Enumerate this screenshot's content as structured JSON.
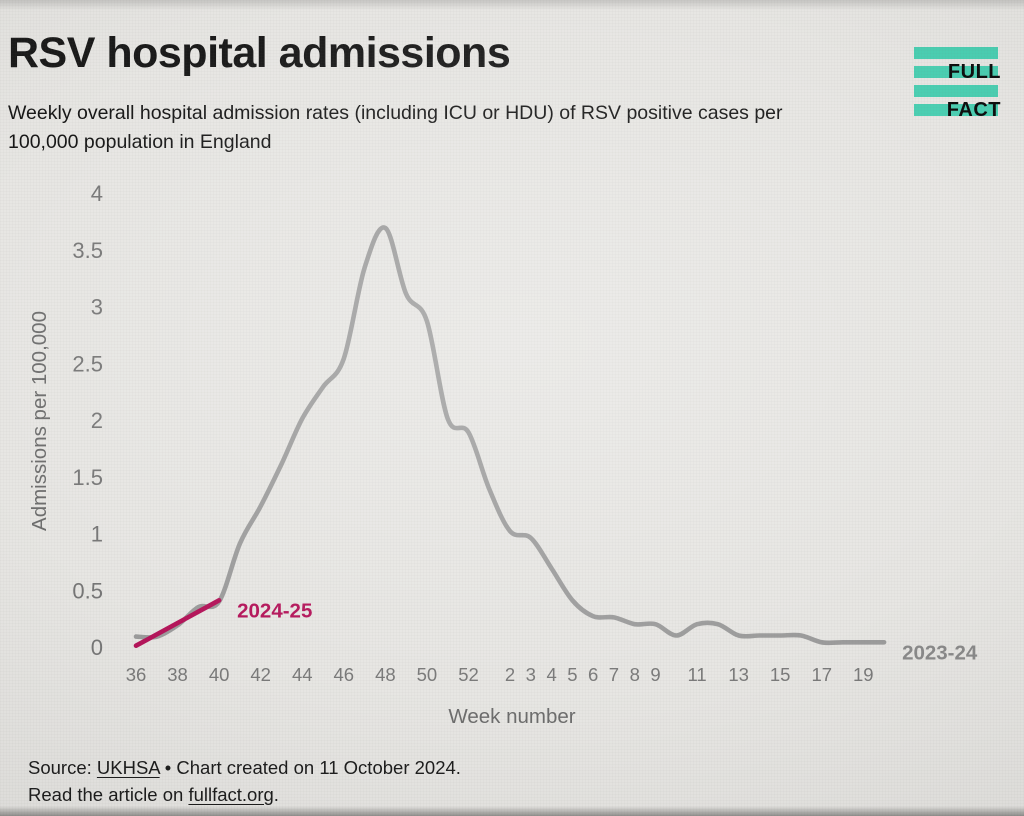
{
  "header": {
    "title": "RSV hospital admissions",
    "subtitle": "Weekly overall hospital admission rates (including ICU or HDU) of RSV positive cases per 100,000 population in England"
  },
  "logo": {
    "word1": "FULL",
    "word2": "FACT",
    "bar_color": "#4BCFB2"
  },
  "chart_data": {
    "type": "line",
    "title": "RSV hospital admissions",
    "xlabel": "Week number",
    "ylabel": "Admissions per 100,000",
    "ylim": [
      0,
      4
    ],
    "grid": false,
    "legend_position": "inline-end-of-line-labels",
    "yticks": [
      0,
      0.5,
      1,
      1.5,
      2,
      2.5,
      3,
      3.5,
      4
    ],
    "ytick_labels": [
      "0",
      "0.5",
      "1",
      "1.5",
      "2",
      "2.5",
      "3",
      "3.5",
      "4"
    ],
    "weeks": [
      36,
      37,
      38,
      39,
      40,
      41,
      42,
      43,
      44,
      45,
      46,
      47,
      48,
      49,
      50,
      51,
      52,
      1,
      2,
      3,
      4,
      5,
      6,
      7,
      8,
      9,
      10,
      11,
      12,
      13,
      14,
      15,
      16,
      17,
      18,
      19,
      20
    ],
    "xticks": [
      36,
      38,
      40,
      42,
      44,
      46,
      48,
      50,
      52,
      2,
      3,
      4,
      5,
      6,
      7,
      8,
      9,
      11,
      13,
      15,
      17,
      19
    ],
    "series": [
      {
        "name": "2023-24",
        "color": "#9C9C9C",
        "label_color": "#8A8A8A",
        "values": [
          0.1,
          0.1,
          0.2,
          0.36,
          0.41,
          0.92,
          1.25,
          1.62,
          2.02,
          2.3,
          2.55,
          3.35,
          3.7,
          3.12,
          2.88,
          2.02,
          1.9,
          1.4,
          1.03,
          0.97,
          0.7,
          0.42,
          0.28,
          0.27,
          0.21,
          0.21,
          0.11,
          0.21,
          0.21,
          0.11,
          0.11,
          0.11,
          0.11,
          0.05,
          0.05,
          0.05,
          0.05
        ]
      },
      {
        "name": "2024-25",
        "color": "#B5145A",
        "label_color": "#B5145A",
        "values": [
          0.02,
          0.12,
          0.22,
          0.32,
          0.42
        ]
      }
    ]
  },
  "footer": {
    "source_prefix": "Source: ",
    "source_link": "UKHSA",
    "source_rest": " • Chart created on 11 October 2024.",
    "line2_prefix": "Read the article on ",
    "line2_link": "fullfact.org",
    "line2_suffix": "."
  }
}
